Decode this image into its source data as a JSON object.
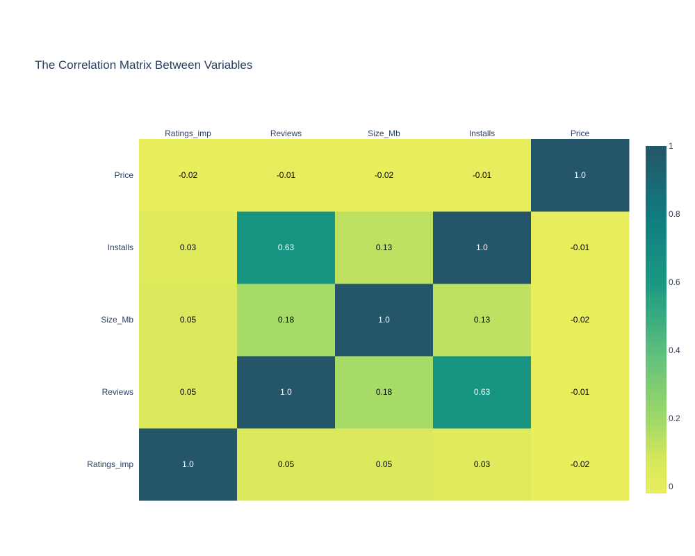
{
  "chart_data": {
    "type": "heatmap",
    "title": "The Correlation Matrix Between Variables",
    "x_categories": [
      "Ratings_imp",
      "Reviews",
      "Size_Mb",
      "Installs",
      "Price"
    ],
    "y_categories": [
      "Ratings_imp",
      "Reviews",
      "Size_Mb",
      "Installs",
      "Price"
    ],
    "z": [
      [
        1.0,
        0.05,
        0.05,
        0.03,
        -0.02
      ],
      [
        0.05,
        1.0,
        0.18,
        0.63,
        -0.01
      ],
      [
        0.05,
        0.18,
        1.0,
        0.13,
        -0.02
      ],
      [
        0.03,
        0.63,
        0.13,
        1.0,
        -0.01
      ],
      [
        -0.02,
        -0.01,
        -0.02,
        -0.01,
        1.0
      ]
    ],
    "annotations": [
      [
        "1.0",
        "0.05",
        "0.05",
        "0.03",
        "-0.02"
      ],
      [
        "0.05",
        "1.0",
        "0.18",
        "0.63",
        "-0.01"
      ],
      [
        "0.05",
        "0.18",
        "1.0",
        "0.13",
        "-0.02"
      ],
      [
        "0.03",
        "0.63",
        "0.13",
        "1.0",
        "-0.01"
      ],
      [
        "-0.02",
        "-0.01",
        "-0.02",
        "-0.01",
        "1.0"
      ]
    ],
    "x_axis_position": "top",
    "colorscale": {
      "range": [
        -0.02,
        1.0
      ],
      "stops": [
        [
          0.0,
          "#e9ee5c"
        ],
        [
          0.1,
          "#d5e75c"
        ],
        [
          0.2,
          "#a5da68"
        ],
        [
          0.4,
          "#5fc07c"
        ],
        [
          0.6,
          "#1a9a82"
        ],
        [
          0.8,
          "#107b80"
        ],
        [
          1.0,
          "#245569"
        ]
      ]
    },
    "colorbar": {
      "ticks": [
        0,
        0.2,
        0.4,
        0.6,
        0.8,
        1
      ],
      "tick_labels": [
        "0",
        "0.2",
        "0.4",
        "0.6",
        "0.8",
        "1"
      ]
    },
    "text_colors": {
      "dark_cell": "#ffffff",
      "light_cell": "#000000"
    }
  }
}
